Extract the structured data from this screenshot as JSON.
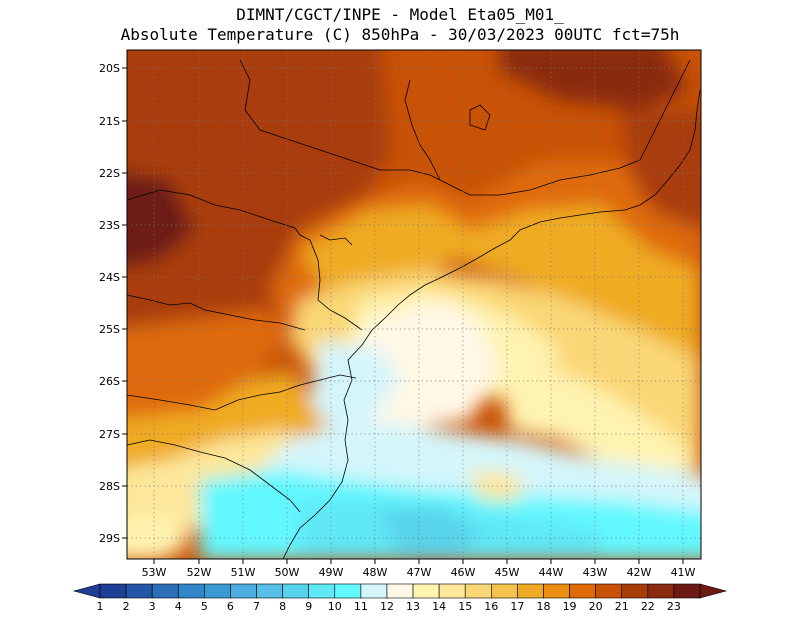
{
  "title": {
    "line1": "DIMNT/CGCT/INPE -  Model Eta05_M01_",
    "line2": "Absolute Temperature (C) 850hPa -  30/03/2023 00UTC fct=75h"
  },
  "lat_labels": [
    "20S",
    "21S",
    "22S",
    "23S",
    "24S",
    "25S",
    "26S",
    "27S",
    "28S",
    "29S"
  ],
  "lon_labels": [
    "53W",
    "52W",
    "51W",
    "50W",
    "49W",
    "48W",
    "47W",
    "46W",
    "45W",
    "44W",
    "43W",
    "42W",
    "41W"
  ],
  "colorbar": {
    "labels": [
      "1",
      "2",
      "3",
      "4",
      "5",
      "6",
      "7",
      "8",
      "9",
      "10",
      "11",
      "12",
      "13",
      "14",
      "15",
      "16",
      "17",
      "18",
      "19",
      "20",
      "21",
      "22",
      "23"
    ],
    "colors": [
      "#1f3f96",
      "#2356a6",
      "#2a6fb8",
      "#3285c6",
      "#3c9ad2",
      "#4aaddd",
      "#57c0e6",
      "#58d3ec",
      "#5fe8f6",
      "#62f8ff",
      "#d4f6fb",
      "#fff8e6",
      "#fff3b0",
      "#fde79a",
      "#fad776",
      "#f4c34f",
      "#efab24",
      "#eb8e12",
      "#df6a07",
      "#c85206",
      "#a93d08",
      "#8a2a0f",
      "#6d1a14"
    ],
    "under_color": "#1f3f96",
    "over_color": "#6d1a14"
  }
}
